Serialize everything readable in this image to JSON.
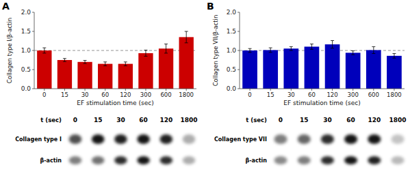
{
  "chart_data": [
    {
      "type": "bar",
      "title": "A",
      "categories": [
        "0",
        "15",
        "30",
        "60",
        "120",
        "300",
        "600",
        "1800"
      ],
      "values": [
        1.0,
        0.75,
        0.7,
        0.65,
        0.65,
        0.93,
        1.05,
        1.35
      ],
      "errors": [
        0.07,
        0.04,
        0.04,
        0.05,
        0.05,
        0.08,
        0.12,
        0.15
      ],
      "color": "#CC0000",
      "xlabel": "EF stimulation time (sec)",
      "ylabel": "Collagen type I/β-actin",
      "ylim": [
        0.0,
        2.0
      ],
      "yticks": [
        {
          "value": 0.0,
          "label": "0.0"
        },
        0.5,
        {
          "value": 1.0,
          "label": "1.0"
        },
        1.5,
        {
          "value": 2.0,
          "label": "2.0"
        }
      ],
      "reference_line": 1.0,
      "grid": false
    },
    {
      "type": "bar",
      "title": "B",
      "categories": [
        "0",
        "15",
        "30",
        "60",
        "120",
        "300",
        "600",
        "1800"
      ],
      "values": [
        1.0,
        1.01,
        1.05,
        1.1,
        1.16,
        0.94,
        1.01,
        0.86
      ],
      "errors": [
        0.05,
        0.06,
        0.05,
        0.07,
        0.1,
        0.05,
        0.09,
        0.06
      ],
      "color": "#0000BB",
      "xlabel": "EF stimulation time (sec)",
      "ylabel": "Collagen type VII/β-actin",
      "ylim": [
        0.0,
        2.0
      ],
      "yticks": [
        {
          "value": 0.0,
          "label": "0.0"
        },
        0.5,
        {
          "value": 1.0,
          "label": "1.0"
        },
        1.5,
        {
          "value": 2.0,
          "label": "2.0"
        }
      ],
      "reference_line": 1.0,
      "grid": false
    },
    {
      "type": "heatmap",
      "xlabel": "t (sec)",
      "x": [
        "0",
        "15",
        "30",
        "60",
        "120",
        "1800"
      ],
      "y": [
        "Collagen type I",
        "β-actin"
      ],
      "values": [
        [
          0.75,
          1.0,
          0.95,
          1.0,
          0.95,
          0.35
        ],
        [
          0.55,
          0.6,
          0.9,
          1.0,
          0.9,
          0.35
        ]
      ]
    },
    {
      "type": "heatmap",
      "xlabel": "t (sec)",
      "x": [
        "0",
        "15",
        "30",
        "60",
        "120",
        "1800"
      ],
      "y": [
        "Collagen type VII",
        "β-actin"
      ],
      "values": [
        [
          0.55,
          0.65,
          0.9,
          1.0,
          1.0,
          0.25
        ],
        [
          0.5,
          0.55,
          0.9,
          1.0,
          0.95,
          0.3
        ]
      ]
    }
  ]
}
